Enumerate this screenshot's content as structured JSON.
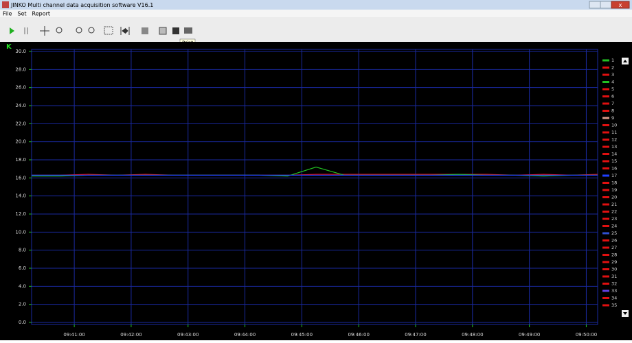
{
  "window_title": "JINKO Multi channel data acquisition software V16.1",
  "menu": [
    "File",
    "Set",
    "Report"
  ],
  "tooltip": "Print",
  "chart_data": {
    "type": "line",
    "y_label": "K",
    "x": [
      "09:40:15",
      "09:40:45",
      "09:41:15",
      "09:41:45",
      "09:42:15",
      "09:42:45",
      "09:43:15",
      "09:43:45",
      "09:44:15",
      "09:44:45",
      "09:45:15",
      "09:45:45",
      "09:46:15",
      "09:46:45",
      "09:47:15",
      "09:47:45",
      "09:48:15",
      "09:48:45",
      "09:49:15",
      "09:49:45",
      "09:50:12"
    ],
    "xlim": [
      "09:40:15",
      "09:50:12"
    ],
    "xticks": [
      "09:41:00",
      "09:42:00",
      "09:43:00",
      "09:44:00",
      "09:45:00",
      "09:46:00",
      "09:47:00",
      "09:48:00",
      "09:49:00",
      "09:50:00"
    ],
    "ylim": [
      0,
      30
    ],
    "yticks": [
      {
        "value": 0,
        "label": "0.0"
      },
      {
        "value": 2,
        "label": "2.0"
      },
      {
        "value": 4,
        "label": "4.0"
      },
      {
        "value": 6,
        "label": "6.0"
      },
      {
        "value": 8,
        "label": "8.0"
      },
      {
        "value": 10,
        "label": "10.0"
      },
      {
        "value": 12,
        "label": "12.0"
      },
      {
        "value": 14,
        "label": "14.0"
      },
      {
        "value": 16,
        "label": "16.0"
      },
      {
        "value": 18,
        "label": "18.0"
      },
      {
        "value": 20,
        "label": "20.0"
      },
      {
        "value": 22,
        "label": "22.0"
      },
      {
        "value": 24,
        "label": "24.0"
      },
      {
        "value": 26,
        "label": "26.0"
      },
      {
        "value": 28,
        "label": "28.0"
      },
      {
        "value": 30,
        "label": "30.0"
      }
    ],
    "grid": true,
    "series": [
      {
        "name": "1",
        "color": "#22c022",
        "values": [
          16.2,
          16.2,
          16.3,
          16.3,
          16.3,
          16.3,
          16.3,
          16.3,
          16.3,
          16.2,
          17.2,
          16.3,
          16.3,
          16.3,
          16.3,
          16.4,
          16.3,
          16.3,
          16.2,
          16.3,
          16.3
        ]
      },
      {
        "name": "2",
        "color": "#e01010",
        "values": [
          16.3,
          16.3,
          16.4,
          16.3,
          16.4,
          16.3,
          16.3,
          16.3,
          16.3,
          16.3,
          16.4,
          16.4,
          16.4,
          16.4,
          16.4,
          16.4,
          16.4,
          16.3,
          16.4,
          16.3,
          16.4
        ]
      },
      {
        "name": "3",
        "color": "#e01010"
      },
      {
        "name": "4",
        "color": "#22c022"
      },
      {
        "name": "5",
        "color": "#e01010"
      },
      {
        "name": "6",
        "color": "#e01010"
      },
      {
        "name": "7",
        "color": "#e01010"
      },
      {
        "name": "8",
        "color": "#e01010"
      },
      {
        "name": "9",
        "color": "#d89a8a"
      },
      {
        "name": "10",
        "color": "#e01010"
      },
      {
        "name": "11",
        "color": "#e01010"
      },
      {
        "name": "12",
        "color": "#e01010"
      },
      {
        "name": "13",
        "color": "#e01010"
      },
      {
        "name": "14",
        "color": "#e01010"
      },
      {
        "name": "15",
        "color": "#e01010"
      },
      {
        "name": "16",
        "color": "#e01010"
      },
      {
        "name": "17",
        "color": "#2040ff",
        "values": [
          16.3,
          16.3,
          16.3,
          16.3,
          16.3,
          16.3,
          16.3,
          16.3,
          16.3,
          16.3,
          16.3,
          16.3,
          16.3,
          16.3,
          16.3,
          16.3,
          16.3,
          16.3,
          16.3,
          16.3,
          16.3
        ]
      },
      {
        "name": "18",
        "color": "#e01010"
      },
      {
        "name": "19",
        "color": "#e01010"
      },
      {
        "name": "20",
        "color": "#e01010"
      },
      {
        "name": "21",
        "color": "#e01010"
      },
      {
        "name": "22",
        "color": "#e01010"
      },
      {
        "name": "23",
        "color": "#e01010"
      },
      {
        "name": "24",
        "color": "#e01010"
      },
      {
        "name": "25",
        "color": "#3050d0"
      },
      {
        "name": "26",
        "color": "#e01010"
      },
      {
        "name": "27",
        "color": "#e01010"
      },
      {
        "name": "28",
        "color": "#e01010"
      },
      {
        "name": "29",
        "color": "#e01010"
      },
      {
        "name": "30",
        "color": "#e01010"
      },
      {
        "name": "31",
        "color": "#e01010"
      },
      {
        "name": "32",
        "color": "#e01010"
      },
      {
        "name": "33",
        "color": "#6040e0"
      },
      {
        "name": "34",
        "color": "#e01010"
      },
      {
        "name": "35",
        "color": "#e01010"
      }
    ]
  }
}
